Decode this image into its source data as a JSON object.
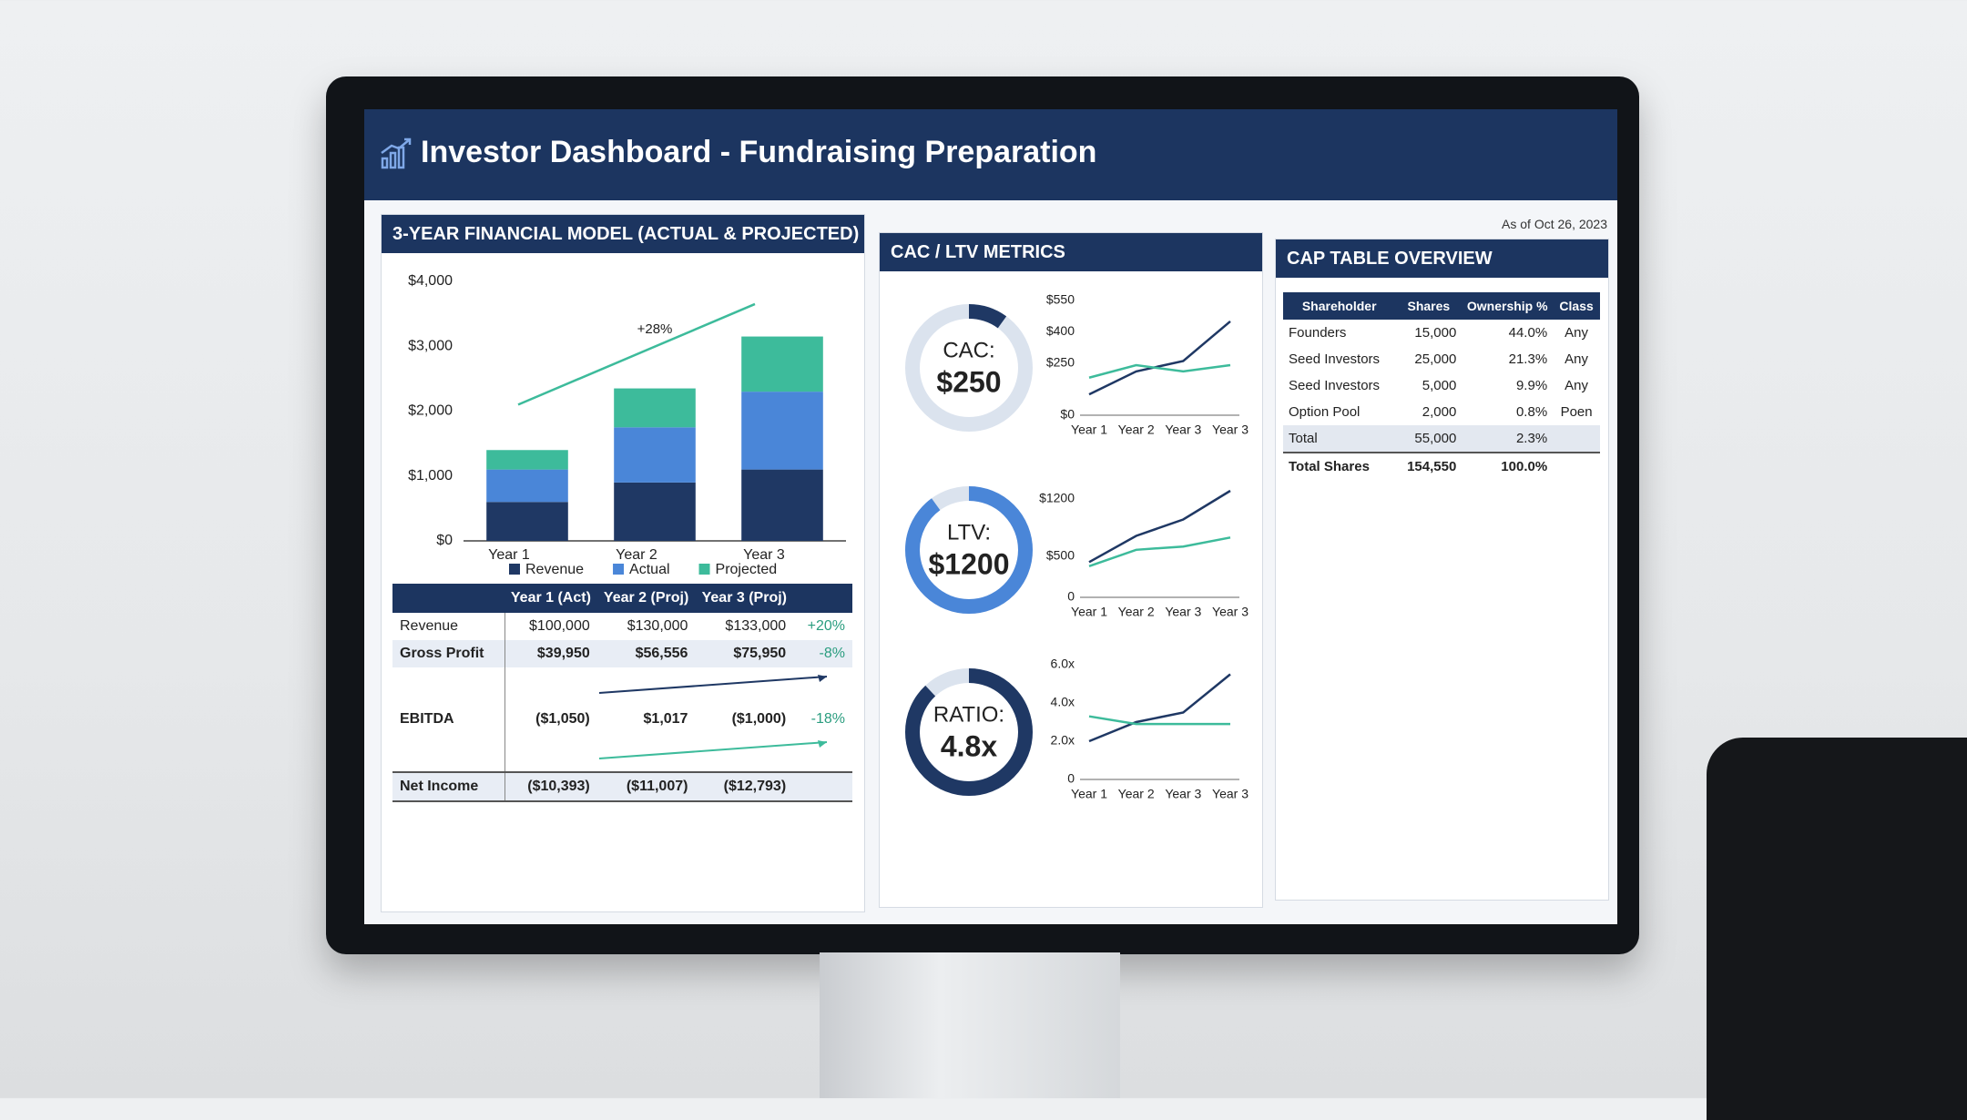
{
  "header": {
    "title": "Investor Dashboard - Fundraising Preparation",
    "as_of": "As of Oct 26, 2023"
  },
  "financial": {
    "title": "3-YEAR FINANCIAL MODEL (ACTUAL & PROJECTED)",
    "table": {
      "columns": [
        "Year 1 (Act)",
        "Year 2 (Proj)",
        "Year 3 (Proj)"
      ],
      "rows": [
        {
          "label": "Revenue",
          "cells": [
            "$100,000",
            "$130,000",
            "$133,000"
          ],
          "change": "+20%"
        },
        {
          "label": "Gross Profit",
          "cells": [
            "$39,950",
            "$56,556",
            "$75,950"
          ],
          "change": "-8%"
        },
        {
          "label": "EBITDA",
          "cells": [
            "($1,050)",
            "$1,017",
            "($1,000)"
          ],
          "change": "-18%"
        },
        {
          "label": "Net Income",
          "cells": [
            "($10,393)",
            "($11,007)",
            "($12,793)"
          ]
        }
      ]
    }
  },
  "metrics": {
    "title": "CAC / LTV METRICS",
    "gauges": [
      {
        "label": "CAC:",
        "value": "$250"
      },
      {
        "label": "LTV:",
        "value": "$1200"
      },
      {
        "label": "RATIO:",
        "value": "4.8x"
      }
    ]
  },
  "cap_table": {
    "title": "CAP TABLE OVERVIEW",
    "columns": [
      "Shareholder",
      "Shares",
      "Ownership %",
      "Class"
    ],
    "rows": [
      [
        "Founders",
        "15,000",
        "44.0%",
        "Any"
      ],
      [
        "Seed Investors",
        "25,000",
        "21.3%",
        "Any"
      ],
      [
        "Seed Investors",
        "5,000",
        "9.9%",
        "Any"
      ],
      [
        "Option Pool",
        "2,000",
        "0.8%",
        "Poen"
      ],
      [
        "Total",
        "55,000",
        "2.3%"
      ],
      [
        "Total Shares",
        "154,550",
        "100.0%"
      ]
    ]
  },
  "chart_data": [
    {
      "type": "bar",
      "stacked": true,
      "annotation": "+28%",
      "categories": [
        "Year 1",
        "Year 2",
        "Year 3"
      ],
      "series": [
        {
          "name": "Revenue",
          "color": "#1f3864",
          "values": [
            600,
            900,
            1100
          ]
        },
        {
          "name": "Actual",
          "color": "#4a86d8",
          "values": [
            500,
            850,
            1200
          ]
        },
        {
          "name": "Projected",
          "color": "#3dbb9b",
          "values": [
            300,
            600,
            850
          ]
        }
      ],
      "ylim": [
        0,
        4000
      ],
      "yticks": [
        {
          "value": 0,
          "label": "$0"
        },
        {
          "value": 1000,
          "label": "$1,000"
        },
        {
          "value": 2000,
          "label": "$2,000"
        },
        {
          "value": 3000,
          "label": "$3,000"
        },
        {
          "value": 4000,
          "label": "$4,000"
        }
      ]
    },
    {
      "type": "line",
      "categories": [
        "Year 1",
        "Year 2",
        "Year 3",
        "Year 3"
      ],
      "series": [
        {
          "color": "#1f3864",
          "values": [
            100,
            210,
            260,
            450
          ]
        },
        {
          "color": "#3dbb9b",
          "values": [
            180,
            240,
            210,
            240
          ]
        }
      ],
      "ylim": [
        0,
        550
      ],
      "yticks": [
        {
          "value": 0,
          "label": "$0"
        },
        {
          "value": 250,
          "label": "$250"
        },
        {
          "value": 400,
          "label": "$400"
        },
        {
          "value": 550,
          "label": "$550"
        }
      ]
    },
    {
      "type": "line",
      "categories": [
        "Year 1",
        "Year 2",
        "Year 3",
        "Year 3"
      ],
      "series": [
        {
          "color": "#1f3864",
          "values": [
            430,
            750,
            950,
            1300
          ]
        },
        {
          "color": "#3dbb9b",
          "values": [
            380,
            580,
            620,
            730
          ]
        }
      ],
      "ylim": [
        0,
        1400
      ],
      "yticks": [
        0,
        {
          "value": 500,
          "label": "$500"
        },
        {
          "value": 1200,
          "label": "$1200"
        }
      ]
    },
    {
      "type": "line",
      "categories": [
        "Year 1",
        "Year 2",
        "Year 3",
        "Year 3"
      ],
      "series": [
        {
          "color": "#1f3864",
          "values": [
            2.0,
            3.0,
            3.5,
            5.5
          ]
        },
        {
          "color": "#3dbb9b",
          "values": [
            3.3,
            2.9,
            2.9,
            2.9
          ]
        }
      ],
      "ylim": [
        0,
        6
      ],
      "yticks": [
        0,
        {
          "value": 2,
          "label": "2.0x"
        },
        {
          "value": 4,
          "label": "4.0x"
        },
        {
          "value": 6,
          "label": "6.0x"
        }
      ]
    }
  ]
}
